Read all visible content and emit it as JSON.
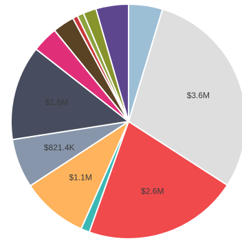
{
  "chart_data": {
    "type": "pie",
    "title": "",
    "slices": [
      {
        "label": "",
        "value": 4.7,
        "color": "#9dbfd6"
      },
      {
        "label": "$3.6M",
        "value": 29.6,
        "color": "#dedede"
      },
      {
        "label": "$2.6M",
        "value": 21.4,
        "color": "#f04a4d"
      },
      {
        "label": "",
        "value": 1.2,
        "color": "#3bb8b4"
      },
      {
        "label": "$1.1M",
        "value": 9.2,
        "color": "#ffb35c"
      },
      {
        "label": "$821.4K",
        "value": 6.8,
        "color": "#8896ab"
      },
      {
        "label": "$1.6M",
        "value": 13.1,
        "color": "#474d5e"
      },
      {
        "label": "",
        "value": 3.6,
        "color": "#e02f78"
      },
      {
        "label": "",
        "value": 3.0,
        "color": "#5a4224"
      },
      {
        "label": "",
        "value": 0.7,
        "color": "#c9383c"
      },
      {
        "label": "",
        "value": 0.9,
        "color": "#8da33e"
      },
      {
        "label": "",
        "value": 1.8,
        "color": "#87952c"
      },
      {
        "label": "",
        "value": 4.5,
        "color": "#5e468f"
      }
    ]
  }
}
